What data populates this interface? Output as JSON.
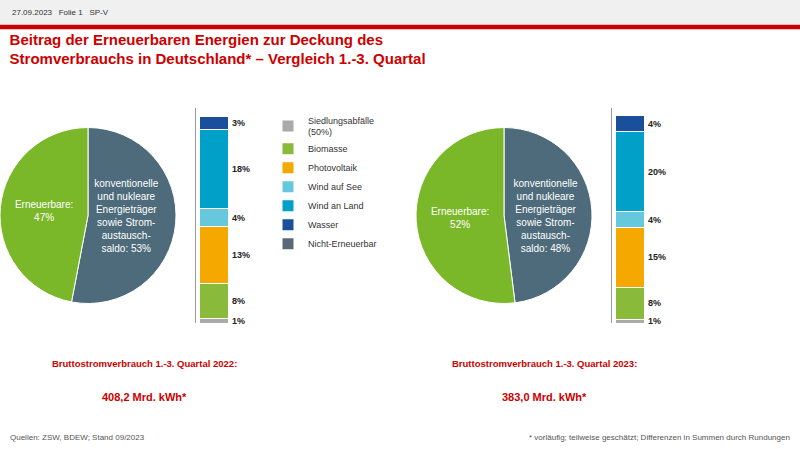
{
  "header": "27.09.2023   Folie 1   SP-V",
  "title": "Beitrag der Erneuerbaren Energien zur Deckung des\nStromverbrauchs in Deutschland* – Vergleich 1.-3. Quartal",
  "title_color": "#cc0000",
  "source": "Quellen: ZSW, BDEW; Stand 09/2023",
  "footnote": "* vorläufig; teilweise geschätzt; Differenzen in Summen durch Rundungen",
  "legend_items": [
    {
      "name": "Nicht-Erneuerbar",
      "color": "#5a6878"
    },
    {
      "name": "Wasser",
      "color": "#1a4f9c"
    },
    {
      "name": "Wind an Land",
      "color": "#00a0c8"
    },
    {
      "name": "Wind auf See",
      "color": "#66c8dd"
    },
    {
      "name": "Photovoltaik",
      "color": "#f5a800"
    },
    {
      "name": "Biomasse",
      "color": "#8aba3a"
    },
    {
      "name": "Siedlungsabfälle\n(50%)",
      "color": "#aaaaaa"
    }
  ],
  "chart_data": [
    {
      "type": "pie",
      "values": [
        53,
        47
      ],
      "value_labels": [
        "konventionelle\nund nukleare\nEnergieträger\nsowie Strom-\naustausch-\nsaldo: 53%",
        "Erneuerbare:\n47%"
      ],
      "colors": [
        "#4d6b7a",
        "#7ab82a"
      ],
      "annotations": [
        "Bruttostromverbrauch 1.-3. Quartal 2022:",
        "408,2 Mrd. kWh*"
      ]
    },
    {
      "type": "bar",
      "stacked": true,
      "data_labels": true,
      "tick_labels": false,
      "ylim": [
        0,
        49
      ],
      "series": [
        {
          "name": "Wasser",
          "color": "#1a4f9c",
          "values": [
            3
          ],
          "value_labels": [
            "3%"
          ]
        },
        {
          "name": "Wind an Land",
          "color": "#00a0c8",
          "values": [
            18
          ],
          "value_labels": [
            "18%"
          ]
        },
        {
          "name": "Wind auf See",
          "color": "#66c8dd",
          "values": [
            4
          ],
          "value_labels": [
            "4%"
          ]
        },
        {
          "name": "Photovoltaik",
          "color": "#f5a800",
          "values": [
            13
          ],
          "value_labels": [
            "13%"
          ]
        },
        {
          "name": "Biomasse",
          "color": "#8aba3a",
          "values": [
            8
          ],
          "value_labels": [
            "8%"
          ]
        },
        {
          "name": "Siedlungsabfälle\n(50%)",
          "color": "#aaaaaa",
          "values": [
            1
          ],
          "value_labels": [
            "1%"
          ]
        }
      ]
    },
    {
      "type": "pie",
      "values": [
        48,
        52
      ],
      "value_labels": [
        "konventionelle\nund nukleare\nEnergieträger\nsowie Strom-\naustausch-\nsaldo: 48%",
        "Erneuerbare:\n52%"
      ],
      "colors": [
        "#4d6b7a",
        "#7ab82a"
      ],
      "annotations": [
        "Bruttostromverbrauch 1.-3. Quartal 2023:",
        "383,0 Mrd. kWh*"
      ]
    },
    {
      "type": "bar",
      "stacked": true,
      "data_labels": true,
      "tick_labels": false,
      "ylim": [
        0,
        54
      ],
      "series": [
        {
          "name": "Wasser",
          "color": "#1a4f9c",
          "values": [
            4
          ],
          "value_labels": [
            "4%"
          ]
        },
        {
          "name": "Wind an Land",
          "color": "#00a0c8",
          "values": [
            20
          ],
          "value_labels": [
            "20%"
          ]
        },
        {
          "name": "Wind auf See",
          "color": "#66c8dd",
          "values": [
            4
          ],
          "value_labels": [
            "4%"
          ]
        },
        {
          "name": "Photovoltaik",
          "color": "#f5a800",
          "values": [
            15
          ],
          "value_labels": [
            "15%"
          ]
        },
        {
          "name": "Biomasse",
          "color": "#8aba3a",
          "values": [
            8
          ],
          "value_labels": [
            "8%"
          ]
        },
        {
          "name": "Siedlungsabfälle\n(50%)",
          "color": "#aaaaaa",
          "values": [
            1
          ],
          "value_labels": [
            "1%"
          ]
        }
      ]
    }
  ]
}
